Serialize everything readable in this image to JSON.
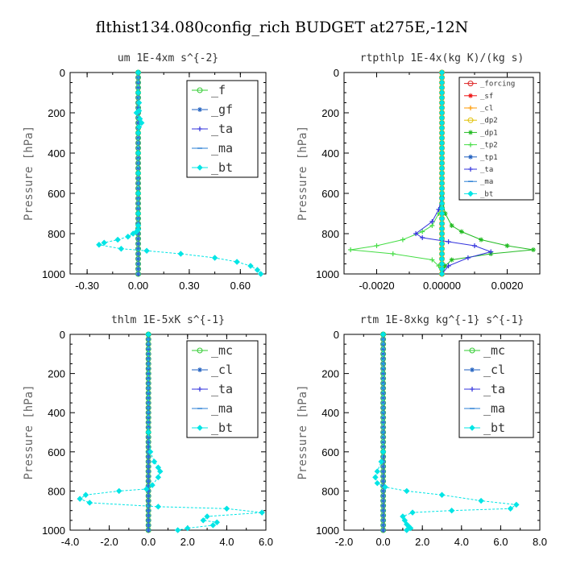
{
  "suptitle": "flthist134.080config_rich  BUDGET at275E,-12N",
  "chart_data": [
    {
      "type": "line",
      "title": "um   1E-4xm s^{-2}",
      "ylabel": "Pressure [hPa]",
      "xlim": [
        -0.4,
        0.75
      ],
      "ylim": [
        1000,
        0
      ],
      "xticks": [
        "-0.30",
        "0.00",
        "0.30",
        "0.60"
      ],
      "xtick_values": [
        -0.3,
        0.0,
        0.3,
        0.6
      ],
      "yticks": [
        "0",
        "200",
        "400",
        "600",
        "800",
        "1000"
      ],
      "ytick_values": [
        0,
        200,
        400,
        600,
        800,
        1000
      ],
      "legend_size": "large",
      "series": [
        {
          "name": "_f",
          "color": "#33cc33",
          "marker": "circle",
          "x": [
            0,
            0
          ],
          "y": [
            0,
            1000
          ]
        },
        {
          "name": "_gf",
          "color": "#1f5fbf",
          "marker": "star",
          "x": [
            0,
            0
          ],
          "y": [
            0,
            1000
          ]
        },
        {
          "name": "_ta",
          "color": "#3333dd",
          "marker": "plus",
          "x": [
            0,
            0
          ],
          "y": [
            0,
            1000
          ]
        },
        {
          "name": "_ma",
          "color": "#2a7fd4",
          "marker": "dash",
          "x": [
            0,
            0
          ],
          "y": [
            0,
            1000
          ]
        },
        {
          "name": "_bt",
          "color": "#00e5e5",
          "marker": "diamond",
          "x": [
            0,
            0,
            0.005,
            0.005,
            -0.01,
            0.01,
            0.02,
            0.005,
            0,
            0,
            0,
            0,
            0,
            0,
            0,
            -0.01,
            -0.03,
            -0.06,
            -0.12,
            -0.2,
            -0.23,
            -0.1,
            0.05,
            0.25,
            0.45,
            0.58,
            0.66,
            0.7,
            0.72
          ],
          "y": [
            0,
            100,
            150,
            190,
            200,
            230,
            250,
            270,
            300,
            400,
            500,
            600,
            700,
            760,
            780,
            790,
            800,
            815,
            830,
            845,
            855,
            875,
            885,
            900,
            920,
            940,
            960,
            980,
            1000
          ]
        }
      ]
    },
    {
      "type": "line",
      "title": "rtpthlp   1E-4x(kg K)/(kg s)",
      "ylabel": "Pressure [hPa]",
      "xlim": [
        -0.003,
        0.003
      ],
      "ylim": [
        1000,
        0
      ],
      "xticks": [
        "-0.0020",
        "0.00000",
        "0.0020"
      ],
      "xtick_values": [
        -0.002,
        0.0,
        0.002
      ],
      "yticks": [
        "0",
        "200",
        "400",
        "600",
        "800",
        "1000"
      ],
      "ytick_values": [
        0,
        200,
        400,
        600,
        800,
        1000
      ],
      "legend_size": "small",
      "series": [
        {
          "name": "_forcing",
          "color": "#dd2222",
          "marker": "circle",
          "x": [
            0,
            0
          ],
          "y": [
            0,
            1000
          ]
        },
        {
          "name": "_sf",
          "color": "#ee1111",
          "marker": "star",
          "x": [
            0,
            0
          ],
          "y": [
            0,
            1000
          ]
        },
        {
          "name": "_cl",
          "color": "#ff9900",
          "marker": "plus",
          "x": [
            0,
            0
          ],
          "y": [
            0,
            1000
          ]
        },
        {
          "name": "_dp2",
          "color": "#e0c000",
          "marker": "circle",
          "x": [
            0,
            0
          ],
          "y": [
            0,
            1000
          ]
        },
        {
          "name": "_dp1",
          "color": "#22bb22",
          "marker": "star",
          "x": [
            0,
            0,
            0.0001,
            0.0003,
            0.0006,
            0.0012,
            0.002,
            0.0028,
            0.0015,
            0.0003,
            0.0001,
            0
          ],
          "y": [
            0,
            620,
            700,
            760,
            790,
            830,
            860,
            880,
            900,
            930,
            960,
            1000
          ]
        },
        {
          "name": "_tp2",
          "color": "#44dd44",
          "marker": "plus",
          "x": [
            0,
            0,
            -0.0001,
            -0.0003,
            -0.0006,
            -0.0012,
            -0.002,
            -0.0028,
            -0.0015,
            -0.0003,
            -0.0001,
            0
          ],
          "y": [
            0,
            620,
            700,
            760,
            790,
            830,
            860,
            880,
            900,
            930,
            960,
            1000
          ]
        },
        {
          "name": "_tp1",
          "color": "#1f5fbf",
          "marker": "star",
          "x": [
            0,
            0
          ],
          "y": [
            0,
            1000
          ]
        },
        {
          "name": "_ta",
          "color": "#3333dd",
          "marker": "plus",
          "x": [
            0,
            0,
            -0.0001,
            -0.0003,
            -0.0008,
            -0.0006,
            0.0002,
            0.001,
            0.0015,
            0.0008,
            0.0002,
            0
          ],
          "y": [
            0,
            620,
            680,
            740,
            800,
            820,
            840,
            860,
            890,
            920,
            960,
            1000
          ]
        },
        {
          "name": "_ma",
          "color": "#2a7fd4",
          "marker": "dash",
          "x": [
            0,
            0
          ],
          "y": [
            0,
            1000
          ]
        },
        {
          "name": "_bt",
          "color": "#00e5e5",
          "marker": "diamond",
          "x": [
            0,
            0
          ],
          "y": [
            0,
            1000
          ]
        }
      ]
    },
    {
      "type": "line",
      "title": "thlm   1E-5xK s^{-1}",
      "ylabel": "Pressure [hPa]",
      "xlim": [
        -4.0,
        6.0
      ],
      "ylim": [
        1000,
        0
      ],
      "xticks": [
        "-4.0",
        "-2.0",
        "0.0",
        "2.0",
        "4.0",
        "6.0"
      ],
      "xtick_values": [
        -4,
        -2,
        0,
        2,
        4,
        6
      ],
      "yticks": [
        "0",
        "200",
        "400",
        "600",
        "800",
        "1000"
      ],
      "ytick_values": [
        0,
        200,
        400,
        600,
        800,
        1000
      ],
      "legend_size": "large",
      "series": [
        {
          "name": "_mc",
          "color": "#33cc33",
          "marker": "circle",
          "x": [
            0,
            0
          ],
          "y": [
            0,
            1000
          ]
        },
        {
          "name": "_cl",
          "color": "#1f5fbf",
          "marker": "star",
          "x": [
            0,
            0
          ],
          "y": [
            0,
            1000
          ]
        },
        {
          "name": "_ta",
          "color": "#3333dd",
          "marker": "plus",
          "x": [
            0,
            0
          ],
          "y": [
            0,
            1000
          ]
        },
        {
          "name": "_ma",
          "color": "#2a7fd4",
          "marker": "dash",
          "x": [
            0,
            0
          ],
          "y": [
            0,
            1000
          ]
        },
        {
          "name": "_bt",
          "color": "#00e5e5",
          "marker": "diamond",
          "x": [
            0,
            0,
            0.1,
            0.3,
            0.5,
            0.6,
            0.5,
            0.2,
            -0.1,
            -1.5,
            -3.2,
            -3.5,
            -3.0,
            0.5,
            4.0,
            5.8,
            3.0,
            2.8,
            3.5,
            3.3,
            2.0,
            1.5
          ],
          "y": [
            0,
            500,
            600,
            650,
            680,
            700,
            730,
            770,
            790,
            800,
            820,
            840,
            860,
            880,
            890,
            910,
            930,
            950,
            960,
            975,
            990,
            1000
          ]
        }
      ]
    },
    {
      "type": "line",
      "title": "rtm   1E-8xkg kg^{-1} s^{-1}",
      "ylabel": "Pressure [hPa]",
      "xlim": [
        -2.0,
        8.0
      ],
      "ylim": [
        1000,
        0
      ],
      "xticks": [
        "-2.0",
        "0.0",
        "2.0",
        "4.0",
        "6.0",
        "8.0"
      ],
      "xtick_values": [
        -2,
        0,
        2,
        4,
        6,
        8
      ],
      "yticks": [
        "0",
        "200",
        "400",
        "600",
        "800",
        "1000"
      ],
      "ytick_values": [
        0,
        200,
        400,
        600,
        800,
        1000
      ],
      "legend_size": "large",
      "series": [
        {
          "name": "_mc",
          "color": "#33cc33",
          "marker": "circle",
          "x": [
            0,
            0
          ],
          "y": [
            0,
            1000
          ]
        },
        {
          "name": "_cl",
          "color": "#1f5fbf",
          "marker": "star",
          "x": [
            0,
            0
          ],
          "y": [
            0,
            1000
          ]
        },
        {
          "name": "_ta",
          "color": "#3333dd",
          "marker": "plus",
          "x": [
            0,
            0
          ],
          "y": [
            0,
            1000
          ]
        },
        {
          "name": "_ma",
          "color": "#2a7fd4",
          "marker": "dash",
          "x": [
            0,
            0
          ],
          "y": [
            0,
            1000
          ]
        },
        {
          "name": "_bt",
          "color": "#00e5e5",
          "marker": "diamond",
          "x": [
            0,
            0,
            -0.1,
            -0.3,
            -0.4,
            -0.3,
            0.1,
            1.2,
            3.0,
            5.0,
            6.8,
            6.5,
            3.5,
            1.5,
            1.0,
            1.1,
            1.2,
            1.3,
            1.4,
            1.2
          ],
          "y": [
            0,
            600,
            650,
            700,
            730,
            760,
            780,
            800,
            820,
            850,
            870,
            890,
            900,
            910,
            930,
            950,
            970,
            980,
            990,
            1000
          ]
        }
      ]
    }
  ]
}
